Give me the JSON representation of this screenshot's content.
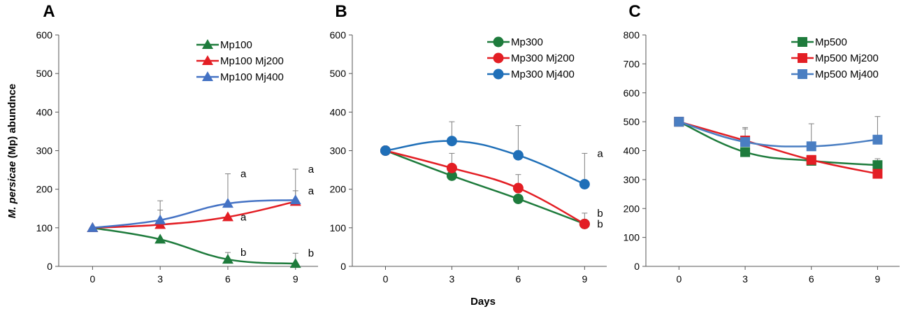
{
  "figure": {
    "ylabel_italic": "M. persicae",
    "ylabel_rest": " (Mp)  abundnce",
    "xlabel": "Days"
  },
  "chart_data": [
    {
      "type": "line",
      "panel": "A",
      "marker": "triangle",
      "x": [
        0,
        3,
        6,
        9
      ],
      "xlim": [
        -1.5,
        10
      ],
      "ylim": [
        0,
        600
      ],
      "yticks": [
        0,
        100,
        200,
        300,
        400,
        500,
        600
      ],
      "series": [
        {
          "name": "Mp100",
          "color": "#1e7b3c",
          "values": [
            100,
            70,
            18,
            7
          ],
          "errors": [
            0,
            0,
            18,
            27
          ],
          "labels": [
            "",
            "",
            "b",
            "b"
          ]
        },
        {
          "name": "Mp100 Mj200",
          "color": "#e31e24",
          "values": [
            100,
            108,
            128,
            168
          ],
          "errors": [
            0,
            38,
            0,
            28
          ],
          "labels": [
            "",
            "",
            "a",
            "a"
          ]
        },
        {
          "name": "Mp100 Mj400",
          "color": "#4472c4",
          "values": [
            100,
            120,
            163,
            172
          ],
          "errors": [
            0,
            50,
            77,
            80
          ],
          "labels": [
            "",
            "",
            "a",
            "a"
          ]
        }
      ]
    },
    {
      "type": "line",
      "panel": "B",
      "marker": "circle",
      "x": [
        0,
        3,
        6,
        9
      ],
      "xlim": [
        -1.5,
        10
      ],
      "ylim": [
        0,
        600
      ],
      "yticks": [
        0,
        100,
        200,
        300,
        400,
        500,
        600
      ],
      "series": [
        {
          "name": "Mp300",
          "color": "#1e7b3c",
          "values": [
            300,
            235,
            175,
            110
          ],
          "errors": [
            0,
            0,
            0,
            0
          ],
          "labels": [
            "",
            "",
            "",
            "b"
          ]
        },
        {
          "name": "Mp300 Mj200",
          "color": "#e31e24",
          "values": [
            300,
            255,
            203,
            110
          ],
          "errors": [
            0,
            38,
            35,
            28
          ],
          "labels": [
            "",
            "",
            "",
            "b"
          ]
        },
        {
          "name": "Mp300 Mj400",
          "color": "#1f6fb8",
          "values": [
            300,
            325,
            288,
            213
          ],
          "errors": [
            0,
            50,
            77,
            80
          ],
          "labels": [
            "",
            "",
            "",
            "a"
          ]
        }
      ]
    },
    {
      "type": "line",
      "panel": "C",
      "marker": "square",
      "x": [
        0,
        3,
        6,
        9
      ],
      "xlim": [
        -1.5,
        10
      ],
      "ylim": [
        0,
        800
      ],
      "yticks": [
        0,
        100,
        200,
        300,
        400,
        500,
        600,
        700,
        800
      ],
      "series": [
        {
          "name": "Mp500",
          "color": "#1e7b3c",
          "values": [
            500,
            395,
            365,
            350
          ],
          "errors": [
            0,
            0,
            0,
            22
          ],
          "labels": [
            "",
            "",
            "",
            ""
          ]
        },
        {
          "name": "Mp500 Mj200",
          "color": "#e31e24",
          "values": [
            500,
            435,
            368,
            320
          ],
          "errors": [
            0,
            45,
            0,
            0
          ],
          "labels": [
            "",
            "",
            "",
            ""
          ]
        },
        {
          "name": "Mp500 Mj400",
          "color": "#4a7ec2",
          "values": [
            500,
            430,
            415,
            438
          ],
          "errors": [
            0,
            45,
            78,
            80
          ],
          "labels": [
            "",
            "",
            "",
            ""
          ]
        }
      ]
    }
  ]
}
